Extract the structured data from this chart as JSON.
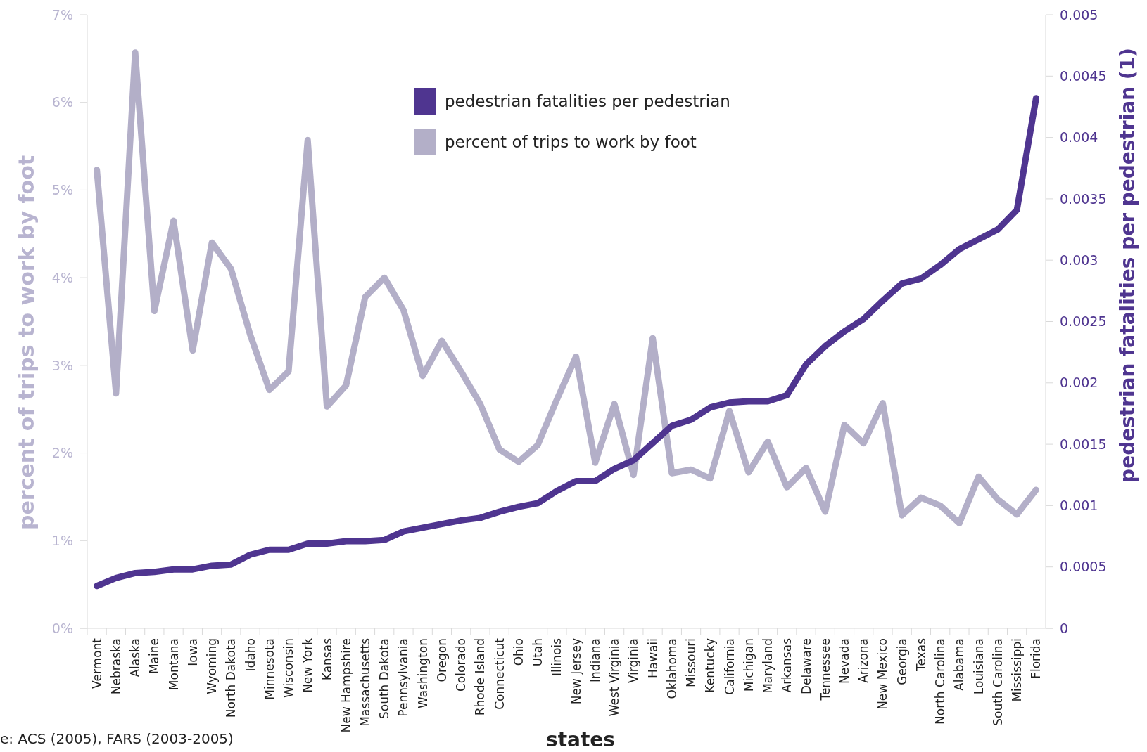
{
  "chart_data": {
    "type": "line",
    "xlabel": "states",
    "ylabel": "percent of trips to work by foot",
    "y2label": "pedestrian fatalities per pedestrian (1)",
    "annotations": [
      "e: ACS (2005), FARS (2003-2005)"
    ],
    "categories": [
      "Vermont",
      "Nebraska",
      "Alaska",
      "Maine",
      "Montana",
      "Iowa",
      "Wyoming",
      "North Dakota",
      "Idaho",
      "Minnesota",
      "Wisconsin",
      "New York",
      "Kansas",
      "New Hampshire",
      "Massachusetts",
      "South Dakota",
      "Pennsylvania",
      "Washington",
      "Oregon",
      "Colorado",
      "Rhode Island",
      "Connecticut",
      "Ohio",
      "Utah",
      "Illinois",
      "New Jersey",
      "Indiana",
      "West Virginia",
      "Virginia",
      "Hawaii",
      "Oklahoma",
      "Missouri",
      "Kentucky",
      "California",
      "Michigan",
      "Maryland",
      "Arkansas",
      "Delaware",
      "Tennessee",
      "Nevada",
      "Arizona",
      "New Mexico",
      "Georgia",
      "Texas",
      "North Carolina",
      "Alabama",
      "Louisiana",
      "South Carolina",
      "Mississippi",
      "Florida"
    ],
    "series": [
      {
        "name": "pedestrian fatalities per pedestrian",
        "color": "#4f3590",
        "axis": "y2",
        "values": [
          0.000345,
          0.00041,
          0.00045,
          0.00046,
          0.00048,
          0.00048,
          0.00051,
          0.00052,
          0.0006,
          0.00064,
          0.00064,
          0.00069,
          0.00069,
          0.00071,
          0.00071,
          0.00072,
          0.00079,
          0.00082,
          0.00085,
          0.00088,
          0.0009,
          0.00095,
          0.00099,
          0.00102,
          0.00112,
          0.0012,
          0.0012,
          0.0013,
          0.00137,
          0.00151,
          0.00165,
          0.0017,
          0.0018,
          0.00184,
          0.00185,
          0.00185,
          0.0019,
          0.00215,
          0.0023,
          0.00242,
          0.00252,
          0.00267,
          0.00281,
          0.00285,
          0.00296,
          0.00309,
          0.00317,
          0.00325,
          0.00341,
          0.00432
        ]
      },
      {
        "name": "percent of trips to work by foot",
        "color": "#b3afc8",
        "values": [
          5.23,
          2.68,
          6.57,
          3.62,
          4.65,
          3.17,
          4.4,
          4.1,
          3.35,
          2.72,
          2.93,
          5.57,
          2.53,
          2.77,
          3.78,
          4.0,
          3.63,
          2.88,
          3.28,
          2.93,
          2.56,
          2.04,
          1.9,
          2.09,
          2.61,
          3.1,
          1.89,
          2.56,
          1.75,
          3.31,
          1.77,
          1.81,
          1.71,
          2.48,
          1.78,
          2.13,
          1.61,
          1.83,
          1.33,
          2.32,
          2.11,
          2.57,
          1.29,
          1.49,
          1.4,
          1.2,
          1.73,
          1.47,
          1.3,
          1.58
        ]
      }
    ],
    "ylim": [
      0,
      7
    ],
    "yticks": [
      {
        "value": 0,
        "label": "0%"
      },
      {
        "value": 1,
        "label": "1%"
      },
      {
        "value": 2,
        "label": "2%"
      },
      {
        "value": 3,
        "label": "3%"
      },
      {
        "value": 4,
        "label": "4%"
      },
      {
        "value": 5,
        "label": "5%"
      },
      {
        "value": 6,
        "label": "6%"
      },
      {
        "value": 7,
        "label": "7%"
      }
    ],
    "y2lim": [
      0,
      0.005
    ],
    "y2ticks": [
      0,
      0.0005,
      0.001,
      0.0015,
      0.002,
      0.0025,
      0.003,
      0.0035,
      0.004,
      0.0045,
      0.005
    ],
    "legend": "top",
    "grid": false,
    "marker": "none",
    "line_style": "solid"
  }
}
